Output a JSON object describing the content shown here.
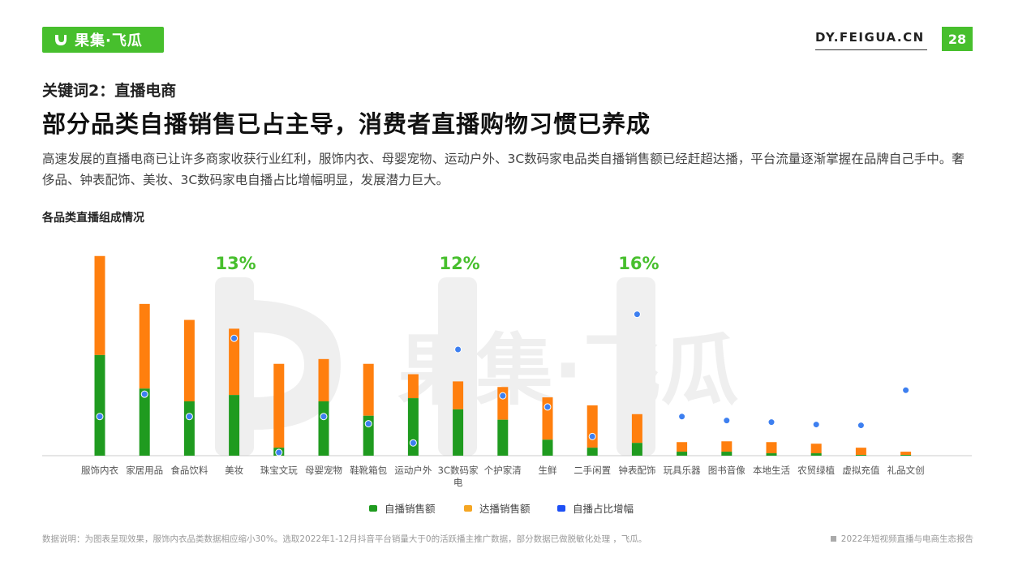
{
  "header": {
    "logo_text": "果集·飞瓜",
    "site_url": "DY.FEIGUA.CN",
    "page_number": "28"
  },
  "subtitle": "关键词2：直播电商",
  "title": "部分品类自播销售已占主导，消费者直播购物习惯已养成",
  "description": "高速发展的直播电商已让许多商家收获行业红利，服饰内衣、母婴宠物、运动户外、3C数码家电品类自播销售额已经赶超达播，平台流量逐渐掌握在品牌自己手中。奢侈品、钟表配饰、美妆、3C数码家电自播占比增幅明显，发展潜力巨大。",
  "chart_title": "各品类直播组成情况",
  "watermark": "果集·飞瓜",
  "colors": {
    "self_broadcast": "#1f9b1f",
    "influencer_broadcast": "#ff7f0e",
    "share_increase": "#3d7ff0",
    "highlight_label": "#47bf2d",
    "legend_self": "#1f9b1f",
    "legend_influencer": "#f5a623",
    "legend_share": "#1d4ff5"
  },
  "chart_data": {
    "type": "bar",
    "stacked": true,
    "categories": [
      "服饰内衣",
      "家居用品",
      "食品饮料",
      "美妆",
      "珠宝文玩",
      "母婴宠物",
      "鞋靴箱包",
      "运动户外",
      "3C数码家电",
      "个护家清",
      "生鲜",
      "二手闲置",
      "钟表配饰",
      "玩具乐器",
      "图书音像",
      "本地生活",
      "农贸绿植",
      "虚拟充值",
      "礼品文创"
    ],
    "series": [
      {
        "name": "自播销售额",
        "values": [
          126,
          84,
          68,
          76,
          10,
          68,
          50,
          72,
          58,
          45,
          20,
          10,
          16,
          5,
          5,
          3,
          3,
          1,
          1
        ]
      },
      {
        "name": "达播销售额",
        "values": [
          124,
          106,
          102,
          83,
          105,
          53,
          65,
          30,
          35,
          41,
          53,
          53,
          36,
          12,
          13,
          14,
          12,
          9,
          4
        ]
      },
      {
        "name": "自播占比增幅",
        "values": [
          49,
          77,
          49,
          147,
          4,
          49,
          40,
          16,
          133,
          75,
          61,
          24,
          177,
          49,
          44,
          42,
          39,
          38,
          82
        ]
      }
    ],
    "highlight_labels": [
      {
        "category": "美妆",
        "text": "13%"
      },
      {
        "category": "3C数码家电",
        "text": "12%"
      },
      {
        "category": "钟表配饰",
        "text": "16%"
      }
    ],
    "legend": [
      "自播销售额",
      "达播销售额",
      "自播占比增幅"
    ],
    "legend_position": "bottom-center",
    "grid": false
  },
  "footnote": "数据说明：为图表呈现效果，服饰内衣品类数据相应缩小30%。选取2022年1-12月抖音平台销量大于0的活跃播主推广数据，部分数据已做脱敏化处理 ，飞瓜。",
  "report_name": "2022年短视频直播与电商生态报告"
}
